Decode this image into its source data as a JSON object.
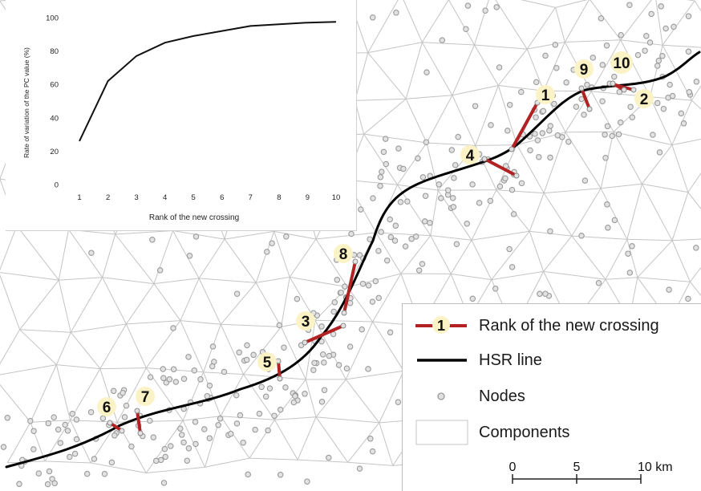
{
  "map": {
    "hsr_color": "#000000",
    "crossing_color": "#b22222",
    "label_bg": "#fbf3c5",
    "node_color": "#9a9a9a",
    "component_border": "#c4c4c4",
    "crossing_labels": [
      {
        "rank": "1"
      },
      {
        "rank": "2"
      },
      {
        "rank": "3"
      },
      {
        "rank": "4"
      },
      {
        "rank": "5"
      },
      {
        "rank": "6"
      },
      {
        "rank": "7"
      },
      {
        "rank": "8"
      },
      {
        "rank": "9"
      },
      {
        "rank": "10"
      }
    ]
  },
  "legend": {
    "crossing_sample_label": "1",
    "crossing_text": "Rank of the new crossing",
    "hsr_text": "HSR line",
    "nodes_text": "Nodes",
    "components_text": "Components"
  },
  "scalebar": {
    "ticks": [
      "0",
      "5",
      "10 km"
    ]
  },
  "chart_data": {
    "type": "line",
    "title": "",
    "xlabel": "Rank of the new crossing",
    "ylabel": "Rate of variation of the PC value (%)",
    "categories": [
      "1",
      "2",
      "3",
      "4",
      "5",
      "6",
      "7",
      "8",
      "9",
      "10"
    ],
    "values": [
      26,
      62,
      77,
      85,
      89,
      92,
      95,
      96,
      97,
      97.5
    ],
    "yticks": [
      "0",
      "20",
      "40",
      "60",
      "80",
      "100"
    ],
    "ylim": [
      0,
      100
    ],
    "line_color": "#111111",
    "grid": false
  }
}
